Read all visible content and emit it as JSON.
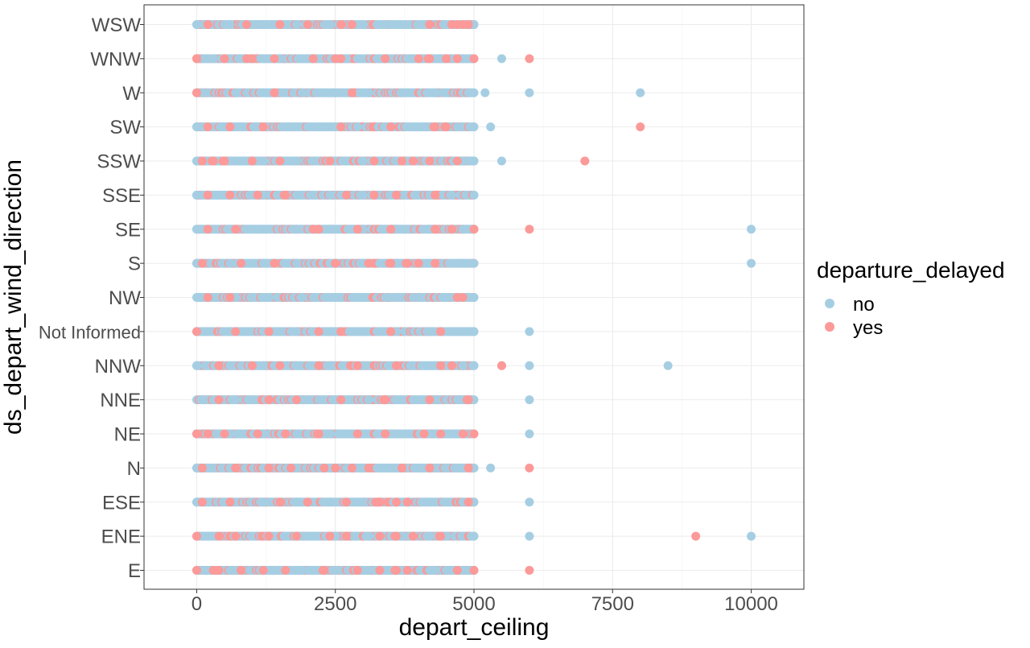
{
  "chart_data": {
    "type": "scatter",
    "xlabel": "depart_ceiling",
    "ylabel": "ds_depart_wind_direction",
    "xlim": [
      -950,
      10950
    ],
    "x_ticks": [
      "0",
      "2500",
      "5000",
      "7500",
      "10000"
    ],
    "x_tick_values": [
      0,
      2500,
      5000,
      7500,
      10000
    ],
    "categories": [
      "E",
      "ENE",
      "ESE",
      "N",
      "NE",
      "NNE",
      "NNW",
      "Not Informed",
      "NW",
      "S",
      "SE",
      "SSE",
      "SSW",
      "SW",
      "W",
      "WNW",
      "WSW"
    ],
    "grid": true,
    "legend_position": "right",
    "legend": {
      "title": "departure_delayed",
      "items": [
        {
          "label": "no",
          "color": "#A6CEE3"
        },
        {
          "label": "yes",
          "color": "#FB9A99"
        }
      ]
    },
    "dense_band": {
      "min": 0,
      "max": 5000,
      "step": 25,
      "note_bands": {
        "yes_share": 0.18
      }
    },
    "series": [
      {
        "name": "no",
        "color": "#A6CEE3",
        "points": [
          {
            "y": "WSW",
            "x": [
              0,
              600,
              1200,
              1800,
              2400,
              3000,
              3400,
              3800,
              4100,
              4500,
              4800,
              5000
            ]
          },
          {
            "y": "WNW",
            "x": [
              300,
              900,
              1500,
              2100,
              2700,
              3300,
              3900,
              4400,
              4800,
              5500
            ]
          },
          {
            "y": "W",
            "x": [
              100,
              700,
              1300,
              1900,
              2500,
              3100,
              3700,
              4300,
              4900,
              5200,
              6000,
              8000
            ]
          },
          {
            "y": "SW",
            "x": [
              0,
              500,
              1100,
              1700,
              2300,
              2900,
              3500,
              4100,
              4700,
              5000,
              5300
            ]
          },
          {
            "y": "SSW",
            "x": [
              0,
              600,
              1200,
              1800,
              2400,
              3000,
              3600,
              4200,
              4800,
              5000,
              5500
            ]
          },
          {
            "y": "SSE",
            "x": [
              0,
              600,
              1200,
              1800,
              2400,
              3000,
              3600,
              4200,
              4600,
              5000
            ]
          },
          {
            "y": "SE",
            "x": [
              0,
              600,
              1200,
              1800,
              2400,
              3000,
              3600,
              4200,
              4800,
              5000,
              10000
            ]
          },
          {
            "y": "S",
            "x": [
              0,
              600,
              1200,
              1800,
              2400,
              3000,
              3600,
              4200,
              4800,
              5000,
              10000
            ]
          },
          {
            "y": "NW",
            "x": [
              100,
              700,
              1300,
              1900,
              2500,
              3000,
              3400,
              3900,
              4500,
              5000
            ]
          },
          {
            "y": "Not Informed",
            "x": [
              0,
              600,
              1200,
              1800,
              2400,
              3000,
              3600,
              4200,
              4800,
              5000,
              6000
            ]
          },
          {
            "y": "NNW",
            "x": [
              0,
              600,
              1200,
              1800,
              2400,
              3000,
              3600,
              4200,
              4800,
              5000,
              5500,
              6000,
              8500
            ]
          },
          {
            "y": "NNE",
            "x": [
              100,
              700,
              1300,
              1900,
              2500,
              3100,
              3700,
              4300,
              4700,
              6000
            ]
          },
          {
            "y": "NE",
            "x": [
              0,
              600,
              1200,
              1800,
              2400,
              3000,
              3600,
              4200,
              4800,
              6000
            ]
          },
          {
            "y": "N",
            "x": [
              0,
              600,
              1200,
              1800,
              2400,
              3000,
              3600,
              4200,
              4800,
              5000,
              5300
            ]
          },
          {
            "y": "ESE",
            "x": [
              0,
              600,
              1200,
              1800,
              2400,
              3000,
              3600,
              4200,
              4800,
              5000,
              6000
            ]
          },
          {
            "y": "ENE",
            "x": [
              100,
              700,
              1300,
              1900,
              2500,
              3100,
              3700,
              4200,
              4500,
              5000,
              6000,
              10000
            ]
          },
          {
            "y": "E",
            "x": [
              100,
              700,
              1300,
              1900,
              2500,
              3100,
              3700,
              4300,
              4800,
              5000
            ]
          }
        ]
      },
      {
        "name": "yes",
        "color": "#FB9A99",
        "points": [
          {
            "y": "WSW",
            "x": [
              200,
              900,
              1500,
              2000,
              2600,
              2800,
              4200,
              4600,
              4700,
              4800,
              4900
            ]
          },
          {
            "y": "WNW",
            "x": [
              0,
              500,
              900,
              1000,
              1400,
              2100,
              2500,
              2600,
              3400,
              4000,
              4200,
              4500,
              4700,
              5000,
              6000
            ]
          },
          {
            "y": "W",
            "x": [
              0,
              1400,
              2800
            ]
          },
          {
            "y": "SW",
            "x": [
              200,
              600,
              1200,
              2600,
              3500,
              4300,
              4500,
              8000
            ]
          },
          {
            "y": "SSW",
            "x": [
              100,
              300,
              500,
              1000,
              1500,
              2400,
              3200,
              3700,
              3900,
              4200,
              4700,
              7000
            ]
          },
          {
            "y": "SSE",
            "x": [
              200,
              600,
              1100,
              1600,
              2700,
              3200,
              3600,
              4300
            ]
          },
          {
            "y": "SE",
            "x": [
              200,
              700,
              2100,
              2200,
              2900,
              3500,
              4300,
              4600,
              5000,
              6000
            ]
          },
          {
            "y": "S",
            "x": [
              100,
              800,
              1400,
              2500,
              3100,
              3500,
              3800,
              4000,
              4300
            ]
          },
          {
            "y": "NW",
            "x": [
              200,
              600,
              4700,
              4800
            ]
          },
          {
            "y": "Not Informed",
            "x": [
              0,
              700,
              1300,
              2200,
              2600,
              3500,
              4400
            ]
          },
          {
            "y": "NNW",
            "x": [
              400,
              1000,
              1500,
              2200,
              2900,
              3600,
              4400,
              4600,
              5500
            ]
          },
          {
            "y": "NNE",
            "x": [
              400,
              1300,
              1800,
              2600,
              3400,
              4200,
              4900
            ]
          },
          {
            "y": "NE",
            "x": [
              0,
              200,
              500,
              1100,
              1600,
              2200,
              2900,
              3400,
              4100,
              4400,
              4800,
              5000
            ]
          },
          {
            "y": "N",
            "x": [
              100,
              700,
              1300,
              1700,
              2300,
              2500,
              2800,
              3100,
              3700,
              4200,
              4900,
              6000
            ]
          },
          {
            "y": "ESE",
            "x": [
              100,
              600,
              1500,
              2000,
              2700,
              3300,
              3600,
              3800,
              4900
            ]
          },
          {
            "y": "ENE",
            "x": [
              0,
              400,
              700,
              1300,
              1800,
              2400,
              2700,
              3300,
              3600,
              3900,
              4400,
              9000
            ]
          },
          {
            "y": "E",
            "x": [
              0,
              300,
              400,
              800,
              1200,
              1600,
              2300,
              2900,
              3300,
              3600,
              3800,
              4700,
              5000,
              6000
            ]
          }
        ]
      }
    ]
  }
}
